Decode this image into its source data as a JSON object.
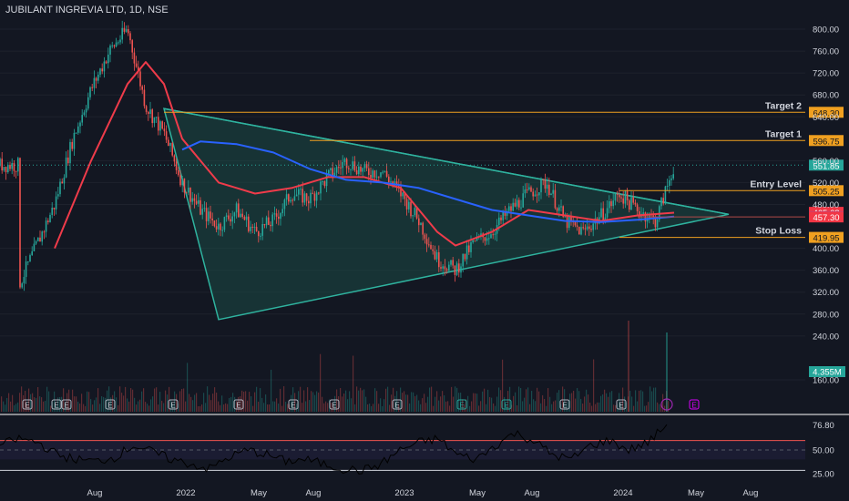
{
  "header": {
    "symbol": "JUBILANT INGREVIA LTD",
    "interval": "1D",
    "exchange": "NSE"
  },
  "colors": {
    "background": "#131722",
    "up_candle": "#26a69a",
    "down_candle": "#ef5350",
    "ema_fast": "#ef3b4a",
    "ema_slow": "#2962ff",
    "triangle_fill": "#1b4a45",
    "triangle_stroke": "#2fb39f",
    "level_line": "#f0a020",
    "rsi_line": "#000000",
    "rsi_band": "#1c1f2e"
  },
  "chart_data": [
    {
      "type": "line",
      "title": "JUBILANT INGREVIA LTD, 1D, NSE",
      "y_scale": "linear",
      "ylim": [
        130,
        820
      ],
      "y_ticks": [
        "800.00",
        "760.00",
        "720.00",
        "680.00",
        "640.00",
        "560.00",
        "520.00",
        "480.00",
        "400.00",
        "360.00",
        "320.00",
        "280.00",
        "240.00",
        "160.00"
      ],
      "x_ticks": [
        "Aug",
        "2022",
        "May",
        "Aug",
        "2023",
        "May",
        "Aug",
        "2024",
        "May",
        "Aug"
      ],
      "series": [
        {
          "role": "price",
          "x": [
            "2021-04",
            "2021-06",
            "2021-07",
            "2021-08",
            "2021-09",
            "2021-10",
            "2021-11",
            "2021-12",
            "2022-01",
            "2022-02",
            "2022-03",
            "2022-04",
            "2022-05",
            "2022-06",
            "2022-07",
            "2022-08",
            "2022-09",
            "2022-10",
            "2022-11",
            "2022-12",
            "2023-01",
            "2023-02",
            "2023-03",
            "2023-04",
            "2023-05",
            "2023-06",
            "2023-07",
            "2023-08",
            "2023-09",
            "2023-10",
            "2023-11",
            "2023-12",
            "2024-01",
            "2024-02",
            "2024-03",
            "2024-04"
          ],
          "values": [
            330,
            480,
            600,
            690,
            760,
            800,
            660,
            610,
            520,
            470,
            440,
            470,
            430,
            450,
            500,
            490,
            530,
            560,
            540,
            540,
            500,
            450,
            380,
            360,
            410,
            430,
            470,
            500,
            520,
            450,
            430,
            460,
            500,
            470,
            450,
            551.85
          ]
        },
        {
          "role": "ema_fast",
          "x": [
            "2021-06",
            "2021-08",
            "2021-10",
            "2021-11",
            "2021-12",
            "2022-01",
            "2022-03",
            "2022-05",
            "2022-07",
            "2022-09",
            "2022-11",
            "2023-01",
            "2023-03",
            "2023-04",
            "2023-06",
            "2023-08",
            "2023-10",
            "2023-12",
            "2024-02",
            "2024-04"
          ],
          "values": [
            400,
            560,
            700,
            740,
            700,
            600,
            520,
            500,
            510,
            530,
            530,
            510,
            430,
            405,
            430,
            470,
            460,
            450,
            460,
            465
          ]
        },
        {
          "role": "ema_slow",
          "x": [
            "2022-01",
            "2022-02",
            "2022-04",
            "2022-06",
            "2022-08",
            "2022-10",
            "2022-12",
            "2023-02",
            "2023-04",
            "2023-06",
            "2023-08",
            "2023-10",
            "2023-12",
            "2024-02",
            "2024-04"
          ],
          "values": [
            580,
            595,
            590,
            575,
            545,
            525,
            520,
            510,
            490,
            470,
            460,
            450,
            448,
            452,
            458
          ]
        }
      ],
      "price_labels": [
        {
          "label": "Target 2",
          "value": "648.30",
          "kind": "level"
        },
        {
          "label": "Target 1",
          "value": "596.75",
          "kind": "level"
        },
        {
          "label": "",
          "value": "551.85",
          "kind": "last"
        },
        {
          "label": "Entry Level",
          "value": "505.25",
          "kind": "level"
        },
        {
          "label": "",
          "value": "465.68",
          "kind": "ema_fast"
        },
        {
          "label": "",
          "value": "457.67",
          "kind": "ema_slow"
        },
        {
          "label": "",
          "value": "457.30",
          "kind": "stop"
        },
        {
          "label": "Stop Loss",
          "value": "419.95",
          "kind": "level"
        }
      ],
      "volume_label": "4.355M",
      "pattern": "symmetrical triangle"
    },
    {
      "type": "line",
      "title": "",
      "ylim": [
        20,
        80
      ],
      "y_ticks": [
        "76.80",
        "50.00",
        "25.00"
      ],
      "upper_band": 60,
      "lower_band": 40,
      "last_value": 76.8,
      "values": [
        55,
        62,
        58,
        45,
        40,
        38,
        42,
        55,
        48,
        40,
        35,
        30,
        42,
        50,
        45,
        38,
        40,
        35,
        30,
        28,
        35,
        50,
        58,
        62,
        45,
        40,
        55,
        68,
        60,
        45,
        40,
        55,
        60,
        50,
        58,
        76.8
      ]
    }
  ],
  "event_markers": [
    "E",
    "E",
    "E",
    "E",
    "E",
    "E",
    "E",
    "E",
    "E",
    "E",
    "E",
    "E",
    "E"
  ],
  "rsi_current": "76.80"
}
